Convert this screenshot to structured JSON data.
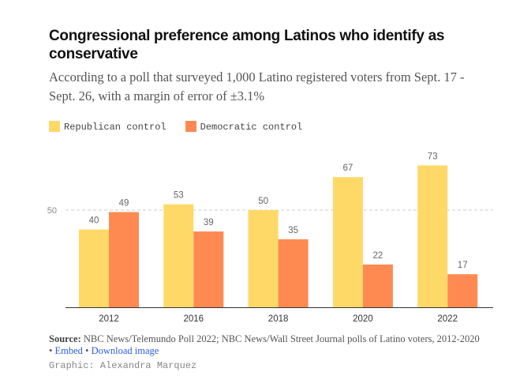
{
  "chart_data": {
    "type": "bar",
    "title": "Congressional preference among Latinos who identify as conservative",
    "subtitle": "According to a poll that surveyed 1,000 Latino registered voters from Sept. 17 - Sept. 26, with a margin of error of ±3.1%",
    "categories": [
      "2012",
      "2016",
      "2018",
      "2020",
      "2022"
    ],
    "series": [
      {
        "name": "Republican control",
        "color": "#fed968",
        "values": [
          40,
          53,
          50,
          67,
          73
        ]
      },
      {
        "name": "Democratic control",
        "color": "#fe8a52",
        "values": [
          49,
          39,
          35,
          22,
          17
        ]
      }
    ],
    "yticks": [
      50
    ],
    "ylim": [
      0,
      100
    ],
    "legend": "top-left"
  },
  "footer": {
    "source_label": "Source:",
    "source_text": "NBC News/Telemundo Poll 2022; NBC News/Wall Street Journal polls of Latino voters, 2012-2020",
    "sep": "•",
    "embed": "Embed",
    "download": "Download image",
    "credit": "Graphic: Alexandra Marquez"
  }
}
